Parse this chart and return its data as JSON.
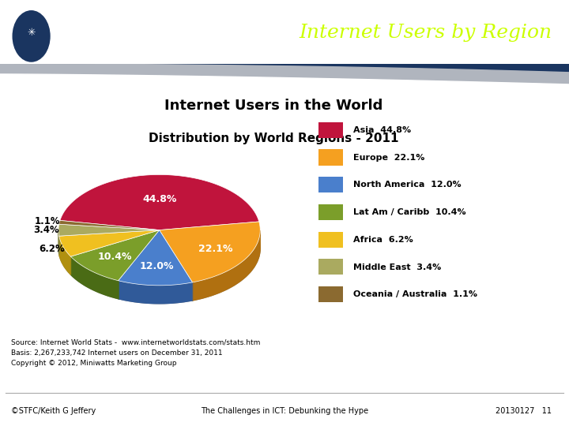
{
  "title_main": "Internet Users in the World",
  "title_sub": "Distribution by World Regions - 2011",
  "slide_title": "Internet Users by Region",
  "labels": [
    "Asia",
    "Europe",
    "North America",
    "Lat Am / Caribb",
    "Africa",
    "Middle East",
    "Oceania / Australia"
  ],
  "values": [
    44.8,
    22.1,
    12.0,
    10.4,
    6.2,
    3.4,
    1.1
  ],
  "colors": [
    "#C0143C",
    "#F5A020",
    "#4A7FCC",
    "#7B9E2A",
    "#F0C020",
    "#AAAA60",
    "#8B6A30"
  ],
  "dark_colors": [
    "#8B0E2A",
    "#B07010",
    "#305A99",
    "#4A6B15",
    "#B09010",
    "#888840",
    "#5A4010"
  ],
  "legend_labels": [
    "Asia  44.8%",
    "Europe  22.1%",
    "North America  12.0%",
    "Lat Am / Caribb  10.4%",
    "Africa  6.2%",
    "Middle East  3.4%",
    "Oceania / Australia  1.1%"
  ],
  "pct_labels": [
    "44.8%",
    "22.1%",
    "12.0%",
    "10.4%",
    "6.2%",
    "3.4%",
    "1.1%"
  ],
  "pct_outside": [
    false,
    false,
    false,
    false,
    true,
    true,
    true
  ],
  "source_text": "Source: Internet World Stats -  www.internetworldstats.com/stats.htm\nBasis: 2,267,233,742 Internet users on December 31, 2011\nCopyright © 2012, Miniwatts Marketing Group",
  "footer_left": "©STFC/Keith G Jeffery",
  "footer_center": "The Challenges in ICT: Debunking the Hype",
  "footer_right": "20130127   11",
  "header_bg": "#1A3560",
  "slide_title_color": "#CCFF00",
  "background_color": "#FFFFFF",
  "startangle": 170
}
